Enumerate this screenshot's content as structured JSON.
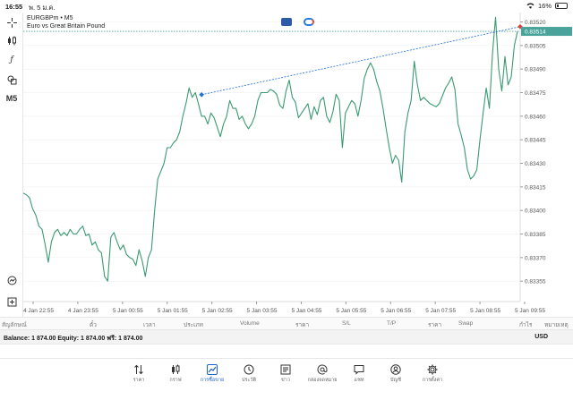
{
  "status": {
    "time": "16:55",
    "date": "พ. 5 ม.ค.",
    "battery": "16%"
  },
  "toolbar": {
    "timeframe": "M5"
  },
  "chart": {
    "symbol_line": "EURGBPm • M5",
    "description": "Euro vs Great Britain Pound",
    "current_price": "0.83514",
    "colors": {
      "line": "#3a9a72",
      "grid": "#ececec",
      "price_line": "#4aa39a",
      "price_tag_bg": "#4aa39a",
      "trendline": "#1f6fd6",
      "accent_red": "#e0413a"
    }
  },
  "chart_data": {
    "type": "line",
    "x_labels": [
      "4 Jan 22:55",
      "4 Jan 23:55",
      "5 Jan 00:55",
      "5 Jan 01:55",
      "5 Jan 02:55",
      "5 Jan 03:55",
      "5 Jan 04:55",
      "5 Jan 05:55",
      "5 Jan 06:55",
      "5 Jan 07:55",
      "5 Jan 08:55",
      "5 Jan 09:55"
    ],
    "y_ticks": [
      "0.83520",
      "0.83505",
      "0.83490",
      "0.83475",
      "0.83460",
      "0.83445",
      "0.83430",
      "0.83415",
      "0.83400",
      "0.83385",
      "0.83370",
      "0.83355"
    ],
    "ylim": [
      0.83342,
      0.83526
    ],
    "values": [
      0.83411,
      0.8341,
      0.83408,
      0.83401,
      0.83397,
      0.8339,
      0.83388,
      0.83378,
      0.83367,
      0.8338,
      0.83386,
      0.83388,
      0.83384,
      0.83386,
      0.83384,
      0.83388,
      0.83385,
      0.83385,
      0.83388,
      0.8339,
      0.83384,
      0.83385,
      0.83378,
      0.8338,
      0.83375,
      0.83373,
      0.83358,
      0.83355,
      0.83383,
      0.83386,
      0.8338,
      0.83375,
      0.83378,
      0.83372,
      0.8337,
      0.83369,
      0.83365,
      0.83375,
      0.83368,
      0.83358,
      0.8337,
      0.83375,
      0.834,
      0.8342,
      0.83425,
      0.8343,
      0.8344,
      0.8344,
      0.83443,
      0.83445,
      0.8345,
      0.8346,
      0.83468,
      0.83478,
      0.83472,
      0.83475,
      0.83468,
      0.8346,
      0.8346,
      0.83455,
      0.83462,
      0.83459,
      0.83453,
      0.83447,
      0.83455,
      0.8346,
      0.8347,
      0.83465,
      0.83465,
      0.83458,
      0.8346,
      0.83455,
      0.83452,
      0.83455,
      0.8346,
      0.8347,
      0.83475,
      0.83475,
      0.83475,
      0.83477,
      0.83476,
      0.83474,
      0.83467,
      0.83465,
      0.83476,
      0.83483,
      0.83472,
      0.83469,
      0.83459,
      0.83462,
      0.83465,
      0.83468,
      0.83458,
      0.83466,
      0.83461,
      0.8347,
      0.83472,
      0.8346,
      0.83456,
      0.83463,
      0.83474,
      0.8347,
      0.8344,
      0.83462,
      0.83466,
      0.8347,
      0.83468,
      0.8346,
      0.8347,
      0.83484,
      0.8349,
      0.83494,
      0.8349,
      0.83482,
      0.83476,
      0.83465,
      0.83452,
      0.8344,
      0.8343,
      0.83435,
      0.83432,
      0.83418,
      0.8345,
      0.83462,
      0.8347,
      0.83495,
      0.8348,
      0.8347,
      0.83472,
      0.8347,
      0.83468,
      0.83467,
      0.83466,
      0.83468,
      0.83473,
      0.83478,
      0.83481,
      0.83485,
      0.83477,
      0.83455,
      0.83448,
      0.8344,
      0.83426,
      0.8342,
      0.83422,
      0.83426,
      0.83445,
      0.83462,
      0.83478,
      0.83465,
      0.835,
      0.83523,
      0.8349,
      0.83476,
      0.83498,
      0.8348,
      0.83485,
      0.83505,
      0.83514
    ]
  },
  "columns": [
    "สัญลักษณ์",
    "ตั๋ว",
    "เวลา",
    "ประเภท",
    "Volume",
    "ราคา",
    "S/L",
    "T/P",
    "ราคา",
    "Swap",
    "กำไร",
    "หมายเหตุ"
  ],
  "balance": {
    "text": "Balance: 1 874.00 Equity: 1 874.00 ฟรี: 1 874.00",
    "currency": "USD"
  },
  "tabs": [
    {
      "label": "ราคา",
      "icon": "arrows-updown-icon"
    },
    {
      "label": "กราฟ",
      "icon": "candles-icon"
    },
    {
      "label": "การซื้อขาย",
      "icon": "trade-chart-icon",
      "active": true
    },
    {
      "label": "ประวัติ",
      "icon": "history-clock-icon"
    },
    {
      "label": "ข่าว",
      "icon": "news-icon"
    },
    {
      "label": "กล่องจดหมาย",
      "icon": "at-sign-icon"
    },
    {
      "label": "แชท",
      "icon": "chat-icon"
    },
    {
      "label": "บัญชี",
      "icon": "account-icon"
    },
    {
      "label": "การตั้งค่า",
      "icon": "gear-icon"
    }
  ]
}
